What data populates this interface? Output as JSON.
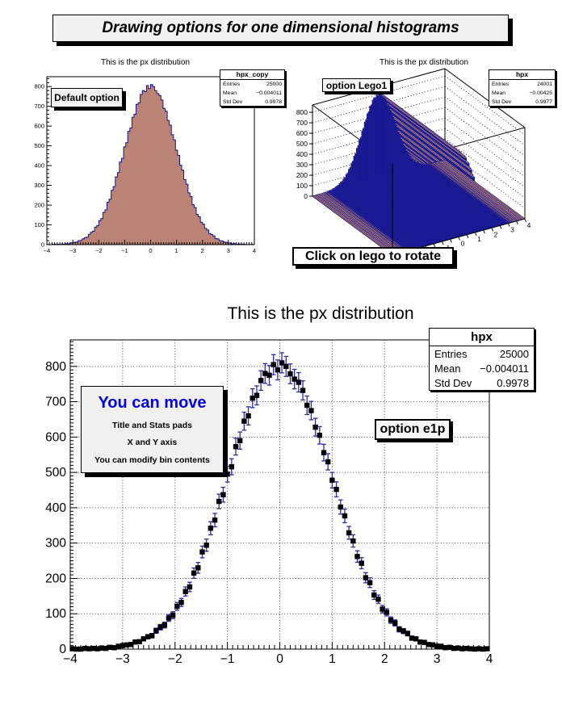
{
  "banner": {
    "title": "Drawing options for one dimensional histograms"
  },
  "colors": {
    "hist_fill": "#bb8376",
    "hist_line": "#14148c",
    "lego_side": "#1c1c96",
    "error_bar": "#2b2baa",
    "marker": "#000000",
    "note_blue": "#0000ee",
    "grid": "#444444"
  },
  "pads": {
    "default": {
      "title": "This is the px distribution",
      "label": "Default option",
      "stats": {
        "name": "hpx_copy",
        "rows": [
          [
            "Entries",
            "25000"
          ],
          [
            "Mean",
            "−0.004011"
          ],
          [
            "Std Dev",
            "0.9978"
          ]
        ]
      }
    },
    "lego": {
      "title": "This is the px distribution",
      "label": "option Lego1",
      "caption": "Click on lego to rotate",
      "stats": {
        "name": "hpx",
        "rows": [
          [
            "Entries",
            "24001"
          ],
          [
            "Mean",
            "−0.00425"
          ],
          [
            "Std Dev",
            "0.9977"
          ]
        ]
      }
    },
    "e1p": {
      "title": "This is the px distribution",
      "label": "option e1p",
      "note_title": "You can move",
      "note_lines": [
        "Title and Stats pads",
        "X and Y axis",
        "You can modify bin contents"
      ],
      "stats": {
        "name": "hpx",
        "rows": [
          [
            "Entries",
            "25000"
          ],
          [
            "Mean",
            "−0.004011"
          ],
          [
            "Std Dev",
            "0.9978"
          ]
        ]
      }
    }
  },
  "chart_data": [
    {
      "type": "bar",
      "subtype": "histogram-filled-steps",
      "title": "This is the px distribution",
      "xlabel": "",
      "ylabel": "",
      "xlim": [
        -4,
        4
      ],
      "ylim": [
        0,
        850
      ],
      "x_ticks": [
        -4,
        -3,
        -2,
        -1,
        0,
        1,
        2,
        3,
        4
      ],
      "y_ticks": [
        0,
        100,
        200,
        300,
        400,
        500,
        600,
        700,
        800
      ],
      "grid": false,
      "nbins": 100,
      "values": [
        1,
        0,
        0,
        2,
        1,
        2,
        1,
        3,
        2,
        5,
        4,
        8,
        10,
        12,
        13,
        20,
        21,
        29,
        35,
        38,
        52,
        62,
        68,
        88,
        96,
        121,
        132,
        163,
        176,
        215,
        230,
        275,
        294,
        342,
        365,
        418,
        437,
        495,
        516,
        573,
        590,
        645,
        660,
        710,
        718,
        760,
        780,
        775,
        805,
        790,
        810,
        800,
        779,
        764,
        755,
        732,
        690,
        675,
        628,
        605,
        556,
        530,
        478,
        452,
        402,
        377,
        329,
        306,
        262,
        243,
        202,
        188,
        153,
        141,
        113,
        104,
        82,
        74,
        56,
        51,
        44,
        31,
        29,
        20,
        19,
        13,
        12,
        8,
        8,
        4,
        5,
        2,
        3,
        1,
        2,
        1,
        0,
        1,
        0,
        1
      ]
    },
    {
      "type": "bar",
      "subtype": "lego3d",
      "title": "This is the px distribution",
      "xlabel": "",
      "ylabel": "",
      "xlim": [
        -4,
        4
      ],
      "zlim": [
        0,
        870
      ],
      "x_ticks": [
        -4,
        -3,
        -2,
        -1,
        0,
        1,
        2,
        3,
        4
      ],
      "z_ticks": [
        0,
        100,
        200,
        300,
        400,
        500,
        600,
        700,
        800
      ],
      "grid": "dotted-walls",
      "nbins": 100,
      "values": [
        1,
        0,
        0,
        2,
        1,
        2,
        1,
        3,
        2,
        5,
        4,
        8,
        10,
        12,
        13,
        20,
        21,
        29,
        35,
        38,
        52,
        62,
        68,
        88,
        96,
        121,
        132,
        163,
        176,
        215,
        230,
        275,
        294,
        342,
        365,
        418,
        437,
        495,
        516,
        573,
        590,
        645,
        660,
        710,
        718,
        760,
        780,
        775,
        805,
        790,
        810,
        800,
        779,
        764,
        755,
        732,
        690,
        675,
        628,
        605,
        556,
        530,
        478,
        452,
        402,
        377,
        329,
        306,
        262,
        243,
        202,
        188,
        153,
        141,
        113,
        104,
        82,
        74,
        56,
        51,
        44,
        31,
        29,
        20,
        19,
        13,
        12,
        8,
        8,
        4,
        5,
        2,
        3,
        1,
        2,
        1,
        0,
        1,
        0,
        1
      ]
    },
    {
      "type": "scatter",
      "subtype": "e1p-markers-with-sqrtN-errors",
      "title": "This is the px distribution",
      "xlabel": "",
      "ylabel": "",
      "xlim": [
        -4,
        4
      ],
      "ylim": [
        0,
        875
      ],
      "x_ticks": [
        -4,
        -3,
        -2,
        -1,
        0,
        1,
        2,
        3,
        4
      ],
      "y_ticks": [
        0,
        100,
        200,
        300,
        400,
        500,
        600,
        700,
        800
      ],
      "grid": true,
      "nbins": 100,
      "values": [
        1,
        0,
        0,
        2,
        1,
        2,
        1,
        3,
        2,
        5,
        4,
        8,
        10,
        12,
        13,
        20,
        21,
        29,
        35,
        38,
        52,
        62,
        68,
        88,
        96,
        121,
        132,
        163,
        176,
        215,
        230,
        275,
        294,
        342,
        365,
        418,
        437,
        495,
        516,
        573,
        590,
        645,
        660,
        710,
        718,
        760,
        780,
        775,
        805,
        790,
        810,
        800,
        779,
        764,
        755,
        732,
        690,
        675,
        628,
        605,
        556,
        530,
        478,
        452,
        402,
        377,
        329,
        306,
        262,
        243,
        202,
        188,
        153,
        141,
        113,
        104,
        82,
        74,
        56,
        51,
        44,
        31,
        29,
        20,
        19,
        13,
        12,
        8,
        8,
        4,
        5,
        2,
        3,
        1,
        2,
        1,
        0,
        1,
        0,
        1
      ]
    }
  ]
}
